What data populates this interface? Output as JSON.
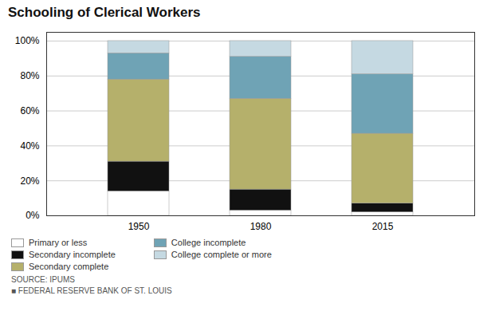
{
  "chart_data": {
    "type": "bar",
    "title": "Schooling of Clerical Workers",
    "stacked": true,
    "categories": [
      "1950",
      "1980",
      "2015"
    ],
    "series": [
      {
        "name": "Primary or less",
        "color": "#ffffff",
        "values": [
          14,
          3,
          2
        ]
      },
      {
        "name": "Secondary incomplete",
        "color": "#111111",
        "values": [
          17,
          12,
          5
        ]
      },
      {
        "name": "Secondary complete",
        "color": "#b5b06b",
        "values": [
          47,
          52,
          40
        ]
      },
      {
        "name": "College incomplete",
        "color": "#6fa3b5",
        "values": [
          15,
          24,
          34
        ]
      },
      {
        "name": "College complete or more",
        "color": "#c5d9e2",
        "values": [
          7,
          9,
          19
        ]
      }
    ],
    "ylim": [
      0,
      105
    ],
    "yticks": [
      {
        "value": 0,
        "label": "0%"
      },
      {
        "value": 20,
        "label": "20%"
      },
      {
        "value": 40,
        "label": "40%"
      },
      {
        "value": 60,
        "label": "60%"
      },
      {
        "value": 80,
        "label": "80%"
      },
      {
        "value": 100,
        "label": "100%"
      }
    ],
    "grid": true,
    "legend": "lower left",
    "annotations": [
      "SOURCE: IPUMS",
      "■  FEDERAL RESERVE BANK OF ST. LOUIS"
    ]
  }
}
